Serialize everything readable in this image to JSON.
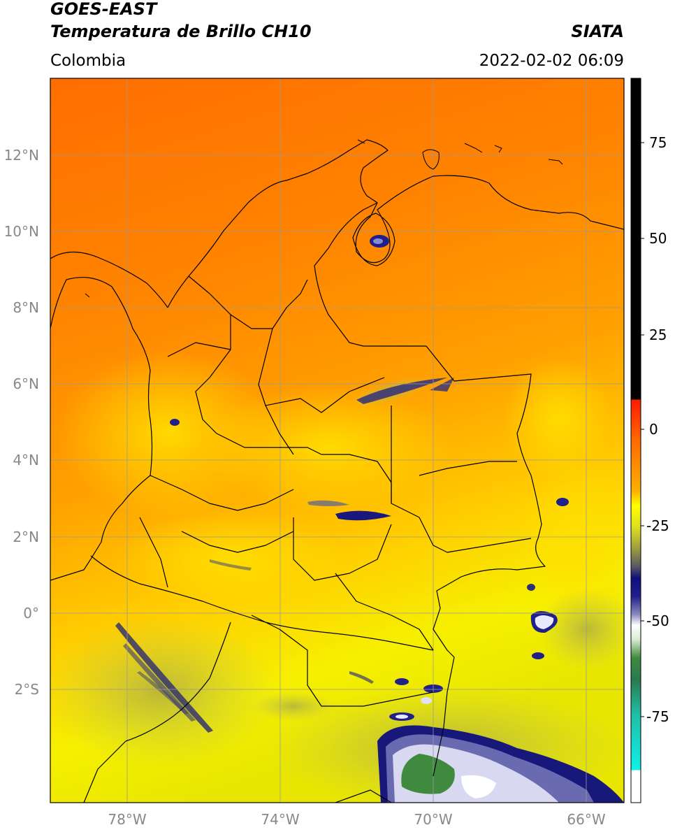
{
  "header": {
    "satellite": "GOES-EAST",
    "product": "Temperatura de Brillo CH10",
    "region": "Colombia",
    "agency": "SIATA",
    "timestamp": "2022-02-02 06:09"
  },
  "map": {
    "lat_labels": [
      "12°N",
      "10°N",
      "8°N",
      "6°N",
      "4°N",
      "2°N",
      "0°",
      "2°S"
    ],
    "lon_labels": [
      "78°W",
      "74°W",
      "70°W",
      "66°W"
    ],
    "extent": {
      "lon": [
        -80,
        -65
      ],
      "lat": [
        -5,
        14
      ]
    },
    "gridlines": true
  },
  "colorbar": {
    "ticks": [
      "75",
      "50",
      "25",
      "0",
      "-25",
      "-50",
      "-75"
    ],
    "range": [
      -95,
      90
    ],
    "colors": {
      "black": "#000000",
      "red": "#ff2a00",
      "orange": "#ff8c00",
      "yellow": "#ffff00",
      "olive": "#9a9a32",
      "navy": "#10107a",
      "white": "#ffffff",
      "green": "#3a8a3a",
      "cyan": "#10e6e0"
    }
  }
}
